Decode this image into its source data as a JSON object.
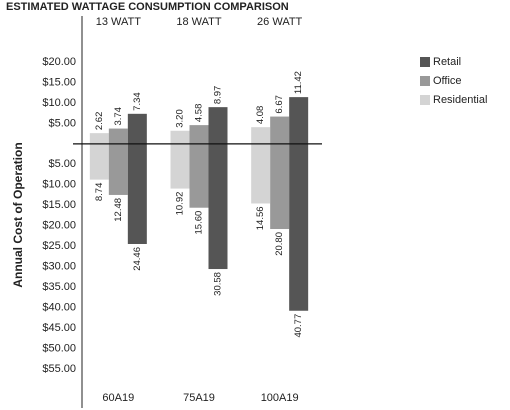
{
  "chart_data": {
    "type": "bar",
    "title": "ESTIMATED WATTAGE CONSUMPTION COMPARISON",
    "y_label": "Annual Cost of Operation",
    "categories": [
      "13 WATT",
      "18 WATT",
      "26 WATT"
    ],
    "bottom_categories": [
      "60A19",
      "75A19",
      "100A19"
    ],
    "series": [
      {
        "name": "Residential",
        "color": "#d4d4d4",
        "values": [
          2.62,
          3.2,
          4.08
        ],
        "value_labels": [
          "2.62",
          "3.20",
          "4.08"
        ],
        "values_below": [
          -8.74,
          -10.92,
          -14.56
        ],
        "value_labels_below": [
          "8.74",
          "10.92",
          "14.56"
        ]
      },
      {
        "name": "Office",
        "color": "#999999",
        "values": [
          3.74,
          4.58,
          6.67
        ],
        "value_labels": [
          "3.74",
          "4.58",
          "6.67"
        ],
        "values_below": [
          -12.48,
          -15.6,
          -20.8
        ],
        "value_labels_below": [
          "12.48",
          "15.60",
          "20.80"
        ]
      },
      {
        "name": "Retail",
        "color": "#555555",
        "values": [
          7.34,
          8.97,
          11.42
        ],
        "value_labels": [
          "7.34",
          "8.97",
          "11.42"
        ],
        "values_below": [
          -24.46,
          -30.58,
          -40.77
        ],
        "value_labels_below": [
          "24.46",
          "30.58",
          "40.77"
        ]
      }
    ],
    "ylim": [
      -55,
      20
    ],
    "yticks": [
      {
        "value": 20,
        "label": "$20.00"
      },
      {
        "value": 15,
        "label": "$15.00"
      },
      {
        "value": 10,
        "label": "$10.00"
      },
      {
        "value": 5,
        "label": "$5.00"
      },
      {
        "value": -5,
        "label": "$5.00"
      },
      {
        "value": -10,
        "label": "$10.00"
      },
      {
        "value": -15,
        "label": "$15.00"
      },
      {
        "value": -20,
        "label": "$20.00"
      },
      {
        "value": -25,
        "label": "$25.00"
      },
      {
        "value": -30,
        "label": "$30.00"
      },
      {
        "value": -35,
        "label": "$35.00"
      },
      {
        "value": -40,
        "label": "$40.00"
      },
      {
        "value": -45,
        "label": "$45.00"
      },
      {
        "value": -50,
        "label": "$50.00"
      },
      {
        "value": -55,
        "label": "$55.00"
      }
    ],
    "grid": false
  }
}
